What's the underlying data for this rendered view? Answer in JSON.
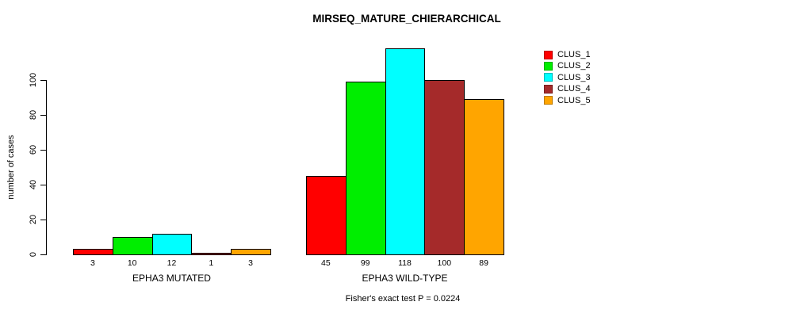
{
  "chart_data": {
    "type": "bar",
    "title": "MIRSEQ_MATURE_CHIERARCHICAL",
    "ylabel": "number of cases",
    "xlabel": "",
    "groups": [
      {
        "label": "EPHA3 MUTATED",
        "values": [
          3,
          10,
          12,
          1,
          3
        ]
      },
      {
        "label": "EPHA3 WILD-TYPE",
        "values": [
          45,
          99,
          118,
          100,
          89
        ]
      }
    ],
    "series": [
      {
        "name": "CLUS_1",
        "color": "#FF0000",
        "values": [
          3,
          45
        ]
      },
      {
        "name": "CLUS_2",
        "color": "#00EE00",
        "values": [
          10,
          99
        ]
      },
      {
        "name": "CLUS_3",
        "color": "#00FFFF",
        "values": [
          12,
          118
        ]
      },
      {
        "name": "CLUS_4",
        "color": "#A52A2A",
        "values": [
          1,
          100
        ]
      },
      {
        "name": "CLUS_5",
        "color": "#FFA500",
        "values": [
          3,
          89
        ]
      }
    ],
    "yticks": [
      0,
      20,
      40,
      60,
      80,
      100
    ],
    "ylim": [
      0,
      120
    ],
    "grid": false,
    "bar_value_labels": [
      [
        "3",
        "10",
        "12",
        "1",
        "3"
      ],
      [
        "45",
        "99",
        "118",
        "100",
        "89"
      ]
    ],
    "legend_position": "right",
    "legend": [
      "CLUS_1",
      "CLUS_2",
      "CLUS_3",
      "CLUS_4",
      "CLUS_5"
    ],
    "annotation": "Fisher's exact test P = 0.0224",
    "colors": {
      "bar_border": "#000000",
      "axis": "#000000",
      "text": "#000000",
      "background": "#FFFFFF"
    }
  }
}
